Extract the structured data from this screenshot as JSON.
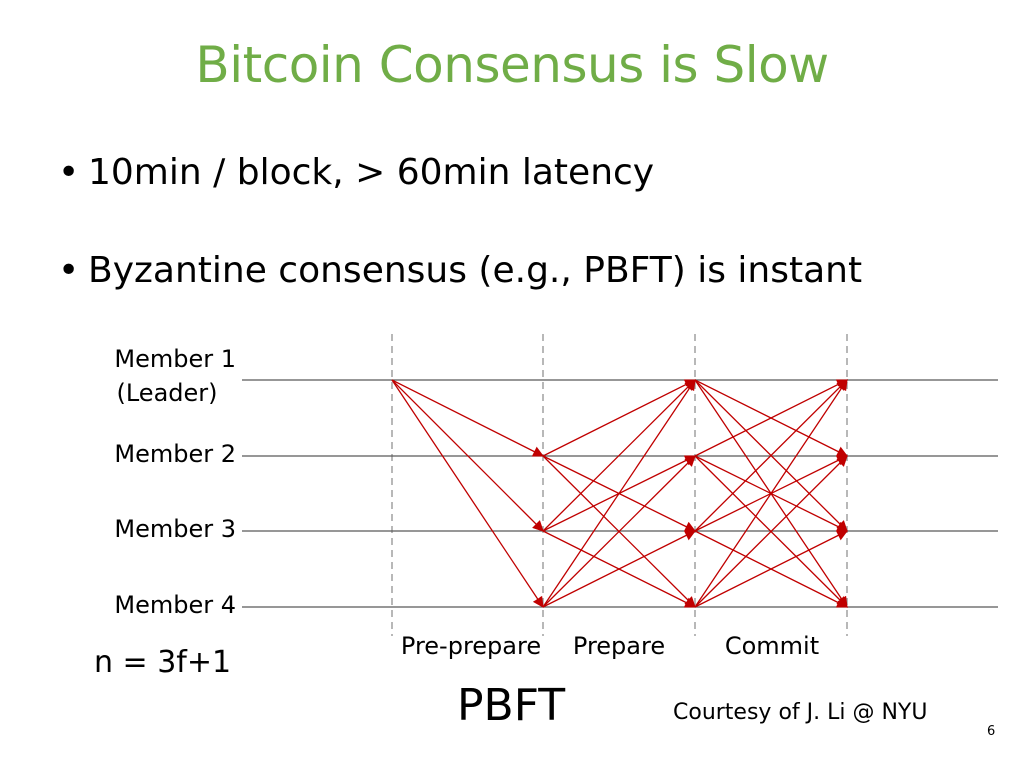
{
  "slide": {
    "title": "Bitcoin Consensus is Slow",
    "bullets": [
      "10min / block, > 60min latency",
      "Byzantine consensus (e.g., PBFT) is instant"
    ],
    "formula": "n = 3f+1",
    "diagram_title": "PBFT",
    "credit": "Courtesy of J. Li @ NYU",
    "page_number": "6"
  },
  "diagram": {
    "members": [
      {
        "label": "Member 1",
        "sublabel": "(Leader)"
      },
      {
        "label": "Member 2"
      },
      {
        "label": "Member 3"
      },
      {
        "label": "Member 4"
      }
    ],
    "phases": [
      "Pre-prepare",
      "Prepare",
      "Commit"
    ],
    "colors": {
      "arrow": "#C00000",
      "timeline": "#595959",
      "divider": "#A0A0A0"
    }
  }
}
